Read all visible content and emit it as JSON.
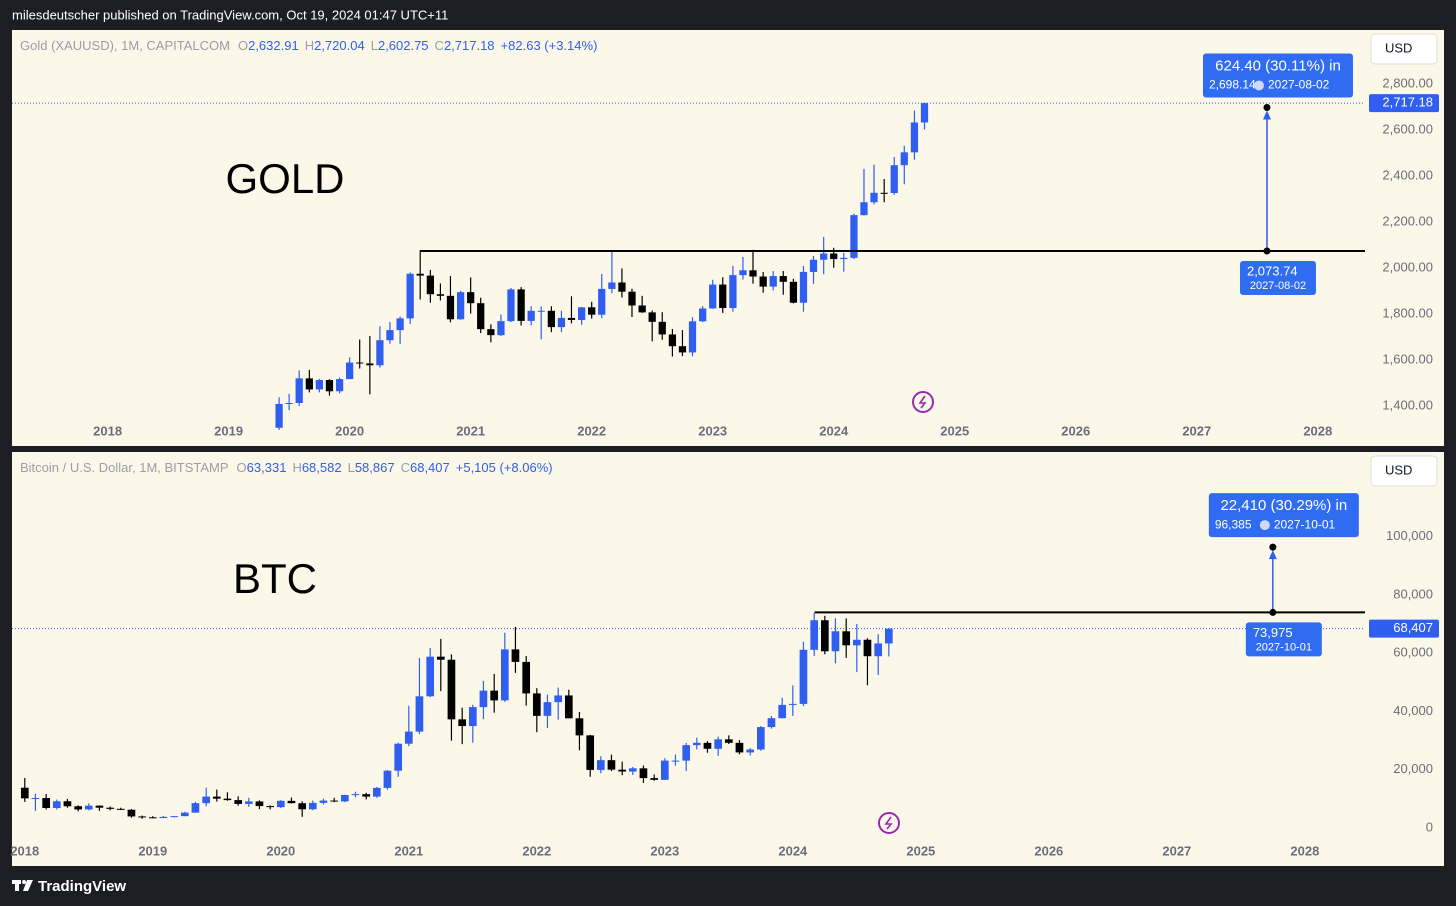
{
  "header": "milesdeutscher published on TradingView.com, Oct 19, 2024 01:47 UTC+11",
  "footer": "TradingView",
  "chart_data": [
    {
      "type": "candlestick",
      "title": "Gold (XAUUSD), 1M, CAPITALCOM",
      "annotation": "GOLD",
      "currency": "USD",
      "ohlc_legend": [
        {
          "label": "O",
          "value": "2,632.91"
        },
        {
          "label": "H",
          "value": "2,720.04"
        },
        {
          "label": "L",
          "value": "2,602.75"
        },
        {
          "label": "C",
          "value": "2,717.18"
        }
      ],
      "change": "+82.63 (+3.14%)",
      "up_color": "#2f5ef0",
      "down_color": "#000000",
      "xlim": [
        2017.21,
        2028.39
      ],
      "xticks": [
        2018,
        2019,
        2020,
        2021,
        2022,
        2023,
        2024,
        2025,
        2026,
        2027,
        2028
      ],
      "ylim": [
        1226,
        3035
      ],
      "yticks": [
        {
          "value": 1400,
          "label": "1,400.00"
        },
        {
          "value": 1600,
          "label": "1,600.00"
        },
        {
          "value": 1800,
          "label": "1,800.00"
        },
        {
          "value": 2000,
          "label": "2,000.00"
        },
        {
          "value": 2200,
          "label": "2,200.00"
        },
        {
          "value": 2400,
          "label": "2,400.00"
        },
        {
          "value": 2600,
          "label": "2,600.00"
        },
        {
          "value": 2800,
          "label": "2,800.00"
        }
      ],
      "grid": false,
      "x": [
        2019.417,
        2019.5,
        2019.583,
        2019.667,
        2019.75,
        2019.833,
        2019.917,
        2020,
        2020.083,
        2020.167,
        2020.25,
        2020.333,
        2020.417,
        2020.5,
        2020.583,
        2020.667,
        2020.75,
        2020.833,
        2020.917,
        2021,
        2021.083,
        2021.167,
        2021.25,
        2021.333,
        2021.417,
        2021.5,
        2021.583,
        2021.667,
        2021.75,
        2021.833,
        2021.917,
        2022,
        2022.083,
        2022.167,
        2022.25,
        2022.333,
        2022.417,
        2022.5,
        2022.583,
        2022.667,
        2022.75,
        2022.833,
        2022.917,
        2023,
        2023.083,
        2023.167,
        2023.25,
        2023.333,
        2023.417,
        2023.5,
        2023.583,
        2023.667,
        2023.75,
        2023.833,
        2023.917,
        2024,
        2024.083,
        2024.167,
        2024.25,
        2024.333,
        2024.417,
        2024.5,
        2024.583,
        2024.667,
        2024.75
      ],
      "open": [
        1305,
        1409,
        1413,
        1520,
        1472,
        1513,
        1464,
        1517,
        1589,
        1585,
        1577,
        1686,
        1730,
        1781,
        1975,
        1967,
        1886,
        1879,
        1777,
        1895,
        1847,
        1734,
        1708,
        1769,
        1907,
        1770,
        1814,
        1814,
        1743,
        1783,
        1774,
        1829,
        1797,
        1909,
        1937,
        1897,
        1837,
        1807,
        1766,
        1711,
        1660,
        1633,
        1768,
        1824,
        1928,
        1826,
        1969,
        1990,
        1963,
        1919,
        1965,
        1940,
        1849,
        1983,
        2036,
        2063,
        2039,
        2044,
        2230,
        2286,
        2327,
        2326,
        2447,
        2503,
        2632.91
      ],
      "high": [
        1438,
        1453,
        1555,
        1557,
        1518,
        1516,
        1524,
        1611,
        1689,
        1704,
        1747,
        1765,
        1789,
        1981,
        2075,
        1992,
        1933,
        1965,
        1900,
        1959,
        1871,
        1755,
        1798,
        1913,
        1917,
        1834,
        1833,
        1834,
        1814,
        1877,
        1831,
        1853,
        1974,
        2070,
        1998,
        1910,
        1879,
        1815,
        1808,
        1735,
        1730,
        1786,
        1834,
        1949,
        1960,
        2009,
        2048,
        2079,
        1983,
        1987,
        1987,
        1953,
        2009,
        2052,
        2135,
        2088,
        2065,
        2236,
        2431,
        2450,
        2387,
        2483,
        2531,
        2685,
        2720.04
      ],
      "low": [
        1296,
        1382,
        1400,
        1459,
        1459,
        1445,
        1455,
        1517,
        1563,
        1451,
        1567,
        1671,
        1670,
        1757,
        1863,
        1849,
        1859,
        1764,
        1775,
        1802,
        1717,
        1677,
        1704,
        1765,
        1750,
        1751,
        1690,
        1721,
        1721,
        1759,
        1753,
        1780,
        1782,
        1890,
        1872,
        1787,
        1805,
        1681,
        1688,
        1615,
        1617,
        1616,
        1765,
        1823,
        1805,
        1810,
        1950,
        1932,
        1893,
        1903,
        1884,
        1846,
        1810,
        1931,
        1973,
        2001,
        1984,
        2039,
        2228,
        2277,
        2286,
        2318,
        2364,
        2471,
        2602.75
      ],
      "close": [
        1409,
        1413,
        1520,
        1472,
        1513,
        1464,
        1517,
        1589,
        1585,
        1577,
        1686,
        1730,
        1781,
        1975,
        1967,
        1886,
        1879,
        1777,
        1895,
        1847,
        1734,
        1708,
        1769,
        1907,
        1770,
        1814,
        1814,
        1743,
        1783,
        1774,
        1829,
        1797,
        1909,
        1937,
        1897,
        1837,
        1807,
        1766,
        1711,
        1660,
        1633,
        1768,
        1824,
        1928,
        1826,
        1969,
        1990,
        1963,
        1919,
        1965,
        1940,
        1849,
        1983,
        2036,
        2063,
        2039,
        2044,
        2230,
        2286,
        2327,
        2326,
        2447,
        2503,
        2632.91,
        2717.18
      ],
      "level": {
        "value": 2073.74,
        "x_start": 2020.58
      },
      "last_price": {
        "value": 2717.18,
        "label": "2,717.18"
      },
      "measure": {
        "x": 2027.58,
        "from": 2073.74,
        "to": 2698.14,
        "summary": "624.40 (30.11%) in",
        "to_label": "2,698.14",
        "to_date": "2027-08-02",
        "from_label": "2,073.74",
        "from_date": "2027-08-02"
      }
    },
    {
      "type": "candlestick",
      "title": "Bitcoin / U.S. Dollar, 1M, BITSTAMP",
      "annotation": "BTC",
      "currency": "USD",
      "ohlc_legend": [
        {
          "label": "O",
          "value": "63,331"
        },
        {
          "label": "H",
          "value": "68,582"
        },
        {
          "label": "L",
          "value": "58,867"
        },
        {
          "label": "C",
          "value": "68,407"
        }
      ],
      "change": "+5,105 (+8.06%)",
      "up_color": "#2f5ef0",
      "down_color": "#000000",
      "xlim": [
        2017.9,
        2028.47
      ],
      "xticks": [
        2018,
        2019,
        2020,
        2021,
        2022,
        2023,
        2024,
        2025,
        2026,
        2027,
        2028
      ],
      "ylim": [
        -13000,
        129000
      ],
      "yticks": [
        0,
        {
          "value": 20000,
          "label": "20,000"
        },
        {
          "value": 40000,
          "label": "40,000"
        },
        {
          "value": 60000,
          "label": "60,000"
        },
        {
          "value": 80000,
          "label": "80,000"
        },
        {
          "value": 100000,
          "label": "100,000"
        }
      ],
      "grid": false,
      "x": [
        2018,
        2018.083,
        2018.167,
        2018.25,
        2018.333,
        2018.417,
        2018.5,
        2018.583,
        2018.667,
        2018.75,
        2018.833,
        2018.917,
        2019,
        2019.083,
        2019.167,
        2019.25,
        2019.333,
        2019.417,
        2019.5,
        2019.583,
        2019.667,
        2019.75,
        2019.833,
        2019.917,
        2020,
        2020.083,
        2020.167,
        2020.25,
        2020.333,
        2020.417,
        2020.5,
        2020.583,
        2020.667,
        2020.75,
        2020.833,
        2020.917,
        2021,
        2021.083,
        2021.167,
        2021.25,
        2021.333,
        2021.417,
        2021.5,
        2021.583,
        2021.667,
        2021.75,
        2021.833,
        2021.917,
        2022,
        2022.083,
        2022.167,
        2022.25,
        2022.333,
        2022.417,
        2022.5,
        2022.583,
        2022.667,
        2022.75,
        2022.833,
        2022.917,
        2023,
        2023.083,
        2023.167,
        2023.25,
        2023.333,
        2023.417,
        2023.5,
        2023.583,
        2023.667,
        2023.75,
        2023.833,
        2023.917,
        2024,
        2024.083,
        2024.167,
        2024.25,
        2024.333,
        2024.417,
        2024.5,
        2024.583,
        2024.667,
        2024.75
      ],
      "open": [
        13850,
        10200,
        10300,
        6900,
        9200,
        7500,
        6400,
        7700,
        7000,
        6600,
        6300,
        4000,
        3700,
        3450,
        3850,
        4100,
        5300,
        8550,
        10800,
        10100,
        9600,
        8300,
        9150,
        7550,
        7200,
        9350,
        8550,
        6450,
        8650,
        9450,
        9150,
        11350,
        11650,
        10800,
        13800,
        19700,
        28950,
        33100,
        45200,
        58800,
        57750,
        37300,
        35000,
        41500,
        47150,
        43800,
        61300,
        57000,
        46200,
        38500,
        43200,
        45500,
        37650,
        31800,
        19950,
        23300,
        20050,
        19400,
        20500,
        17150,
        16550,
        23150,
        23150,
        28450,
        29250,
        27200,
        30450,
        29250,
        25950,
        26950,
        34650,
        37700,
        42250,
        42600,
        61150,
        71300,
        60650,
        67500,
        62700,
        64600,
        58950,
        63331
      ],
      "high": [
        17200,
        11800,
        11700,
        9800,
        10000,
        7800,
        8500,
        7800,
        7400,
        7000,
        6550,
        4300,
        4100,
        4200,
        4100,
        5600,
        9000,
        13900,
        13200,
        12300,
        10900,
        10400,
        9500,
        7750,
        9600,
        10500,
        9200,
        9450,
        10100,
        10400,
        11450,
        12480,
        12100,
        14100,
        19900,
        29300,
        41950,
        58350,
        61800,
        64900,
        59600,
        41300,
        42300,
        50500,
        52900,
        67000,
        69000,
        59050,
        47990,
        45800,
        48200,
        47450,
        39850,
        31950,
        24650,
        25200,
        22800,
        21000,
        21450,
        18400,
        23950,
        25250,
        29200,
        31000,
        29850,
        31400,
        31800,
        30200,
        27450,
        35000,
        38450,
        44700,
        48950,
        63900,
        73800,
        72800,
        71950,
        71950,
        70000,
        65100,
        66500,
        68582
      ],
      "low": [
        9000,
        5900,
        6400,
        6400,
        7000,
        5750,
        6100,
        5900,
        6100,
        6200,
        3550,
        3200,
        3350,
        3400,
        3700,
        4050,
        5300,
        7500,
        9100,
        9400,
        7700,
        7300,
        6500,
        6430,
        6850,
        8450,
        3850,
        6150,
        8100,
        8900,
        8950,
        10550,
        9850,
        10400,
        13200,
        17600,
        28100,
        32300,
        44950,
        47000,
        30000,
        28800,
        29300,
        37350,
        39600,
        43300,
        53250,
        42000,
        32900,
        34300,
        37200,
        37700,
        26700,
        17600,
        18800,
        19550,
        18150,
        18200,
        15500,
        16250,
        16500,
        21400,
        19550,
        26950,
        25850,
        24800,
        28850,
        25300,
        24900,
        26550,
        34100,
        37600,
        38500,
        41850,
        59000,
        59600,
        56500,
        58400,
        53500,
        49000,
        52500,
        58867
      ],
      "close": [
        10200,
        10300,
        6900,
        9200,
        7500,
        6400,
        7700,
        7000,
        6600,
        6300,
        4000,
        3700,
        3450,
        3850,
        4100,
        5300,
        8550,
        10800,
        10100,
        9600,
        8300,
        9150,
        7550,
        7200,
        9350,
        8550,
        6450,
        8650,
        9450,
        9150,
        11350,
        11650,
        10800,
        13800,
        19700,
        28950,
        33100,
        45200,
        58800,
        57750,
        37300,
        35000,
        41500,
        47150,
        43800,
        61300,
        57000,
        46200,
        38500,
        43200,
        45500,
        37650,
        31800,
        19950,
        23300,
        20050,
        19400,
        20500,
        17150,
        16550,
        23150,
        23150,
        28450,
        29250,
        27200,
        30450,
        29250,
        25950,
        26950,
        34650,
        37700,
        42250,
        42600,
        61150,
        71300,
        60650,
        67500,
        62700,
        64600,
        58950,
        63331,
        68407
      ],
      "level": {
        "value": 73975,
        "x_start": 2024.17
      },
      "last_price": {
        "value": 68407,
        "label": "68,407"
      },
      "measure": {
        "x": 2027.75,
        "from": 73975,
        "to": 96385,
        "summary": "22,410 (30.29%) in",
        "to_label": "96,385",
        "to_date": "2027-10-01",
        "from_label": "73,975",
        "from_date": "2027-10-01"
      }
    }
  ]
}
